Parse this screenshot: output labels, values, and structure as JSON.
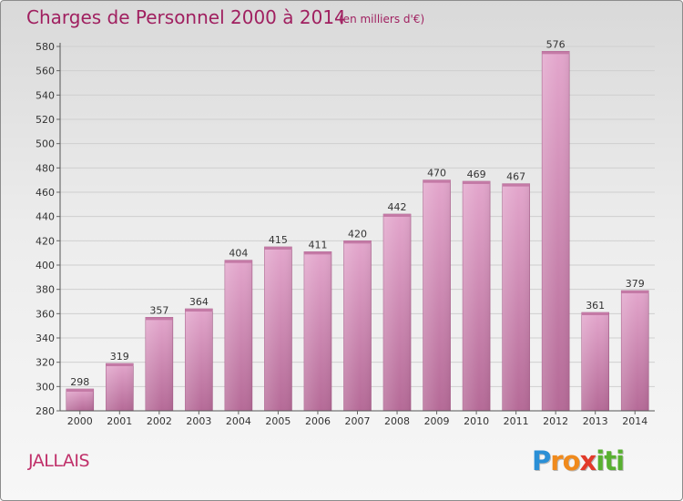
{
  "header": {
    "title": "Charges de Personnel 2000 à 2014",
    "subtitle": "(en milliers d'€)"
  },
  "footer": {
    "commune": "JALLAIS",
    "logo_letters": [
      "P",
      "r",
      "o",
      "x",
      "i",
      "t",
      "i"
    ],
    "logo_colors": [
      "#2a8fd6",
      "#f08a1c",
      "#f08a1c",
      "#e23a2a",
      "#58b030",
      "#58b030",
      "#58b030"
    ]
  },
  "chart_data": {
    "type": "bar",
    "title": "Charges de Personnel 2000 à 2014",
    "subtitle": "(en milliers d'€)",
    "categories": [
      "2000",
      "2001",
      "2002",
      "2003",
      "2004",
      "2005",
      "2006",
      "2007",
      "2008",
      "2009",
      "2010",
      "2011",
      "2012",
      "2013",
      "2014"
    ],
    "values": [
      298,
      319,
      357,
      364,
      404,
      415,
      411,
      420,
      442,
      470,
      469,
      467,
      576,
      361,
      379
    ],
    "ylim": [
      280,
      580
    ],
    "yticks": [
      280,
      300,
      320,
      340,
      360,
      380,
      400,
      420,
      440,
      460,
      480,
      500,
      520,
      540,
      560,
      580
    ],
    "grid": true,
    "data_labels": true,
    "bar_color": "#d98cb8",
    "bar_color_dark": "#b86a98"
  }
}
